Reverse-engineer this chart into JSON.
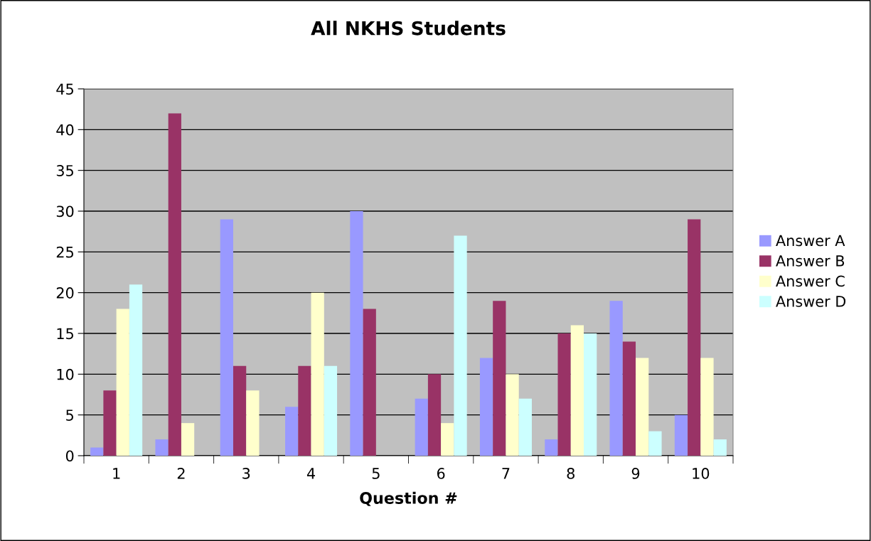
{
  "chart_data": {
    "type": "bar",
    "title": "All NKHS Students",
    "xlabel": "Question #",
    "categories": [
      "1",
      "2",
      "3",
      "4",
      "5",
      "6",
      "7",
      "8",
      "9",
      "10"
    ],
    "series": [
      {
        "name": "Answer A",
        "color": "#9999ff",
        "values": [
          1,
          2,
          29,
          6,
          30,
          7,
          12,
          2,
          19,
          5
        ]
      },
      {
        "name": "Answer B",
        "color": "#993366",
        "values": [
          8,
          42,
          11,
          11,
          18,
          10,
          19,
          15,
          14,
          29
        ]
      },
      {
        "name": "Answer C",
        "color": "#ffffcc",
        "values": [
          18,
          4,
          8,
          20,
          0,
          4,
          10,
          16,
          12,
          12
        ]
      },
      {
        "name": "Answer D",
        "color": "#ccffff",
        "values": [
          21,
          0,
          0,
          11,
          0,
          27,
          7,
          15,
          3,
          2
        ]
      }
    ],
    "ylim": [
      0,
      45
    ],
    "yticks": [
      0,
      5,
      10,
      15,
      20,
      25,
      30,
      35,
      40,
      45
    ],
    "grid": "y",
    "legend": "right"
  }
}
